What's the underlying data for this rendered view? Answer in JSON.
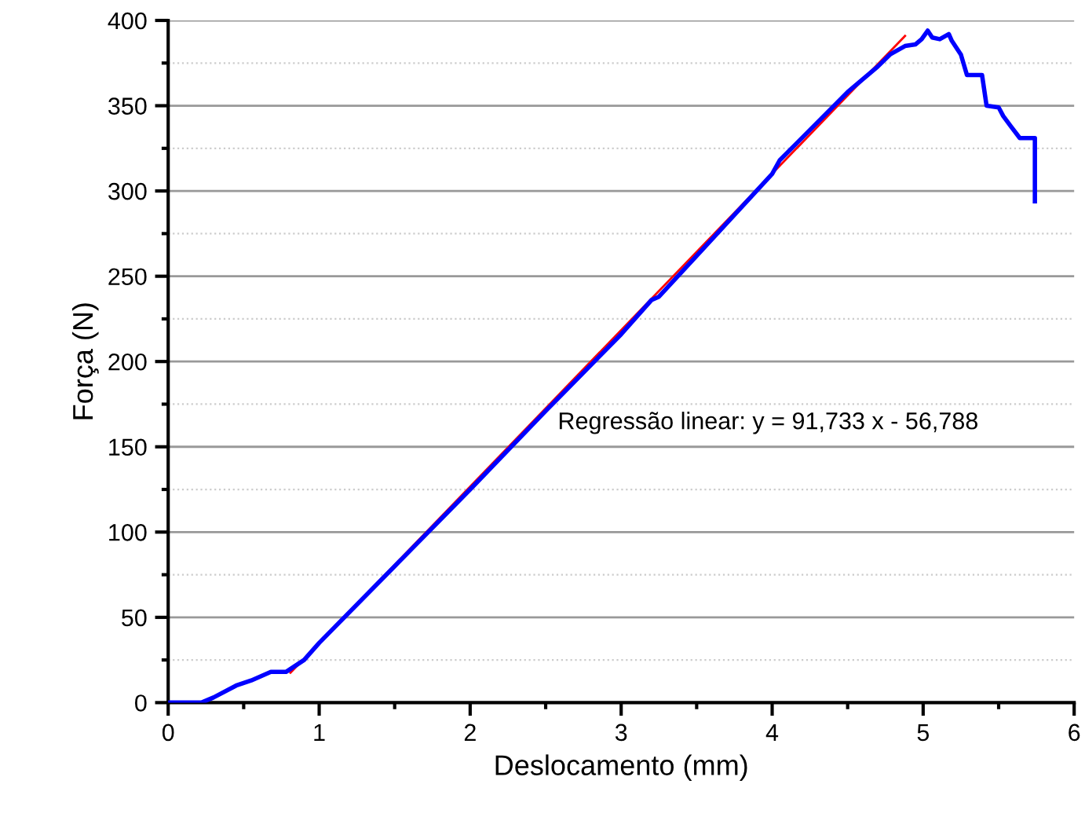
{
  "chart_data": {
    "type": "line",
    "xlabel": "Deslocamento (mm)",
    "ylabel": "Força (N)",
    "xlim": [
      0,
      6
    ],
    "ylim": [
      0,
      400
    ],
    "xticks": [
      0,
      1,
      2,
      3,
      4,
      5,
      6
    ],
    "yticks": [
      0,
      50,
      100,
      150,
      200,
      250,
      300,
      350,
      400
    ],
    "grid": "y",
    "line_style": "solid",
    "annotations": [
      "Regressão linear: y = 91,733 x - 56,788"
    ],
    "series": [
      {
        "color": "#0000ff",
        "x": [
          0,
          0.22,
          0.3,
          0.45,
          0.55,
          0.68,
          0.78,
          0.9,
          1.0,
          1.1,
          1.5,
          2.0,
          2.5,
          3.0,
          3.2,
          3.25,
          3.5,
          4.0,
          4.05,
          4.5,
          4.7,
          4.78,
          4.88,
          4.95,
          4.99,
          5.03,
          5.06,
          5.11,
          5.17,
          5.19,
          5.25,
          5.29,
          5.39,
          5.42,
          5.5,
          5.53,
          5.58,
          5.64,
          5.74,
          5.74
        ],
        "values": [
          0,
          0,
          3,
          10,
          13,
          18,
          18,
          25,
          35,
          44,
          80,
          125,
          171,
          216,
          236,
          238,
          262,
          310,
          318,
          358,
          373,
          380,
          385,
          386,
          389,
          394,
          390,
          389,
          392,
          388,
          380,
          368,
          368,
          350,
          349,
          344,
          338,
          331,
          331,
          294
        ]
      },
      {
        "color": "#ff0000",
        "x": [
          0.81,
          4.88
        ],
        "values": [
          17.5,
          390.9
        ]
      }
    ]
  }
}
